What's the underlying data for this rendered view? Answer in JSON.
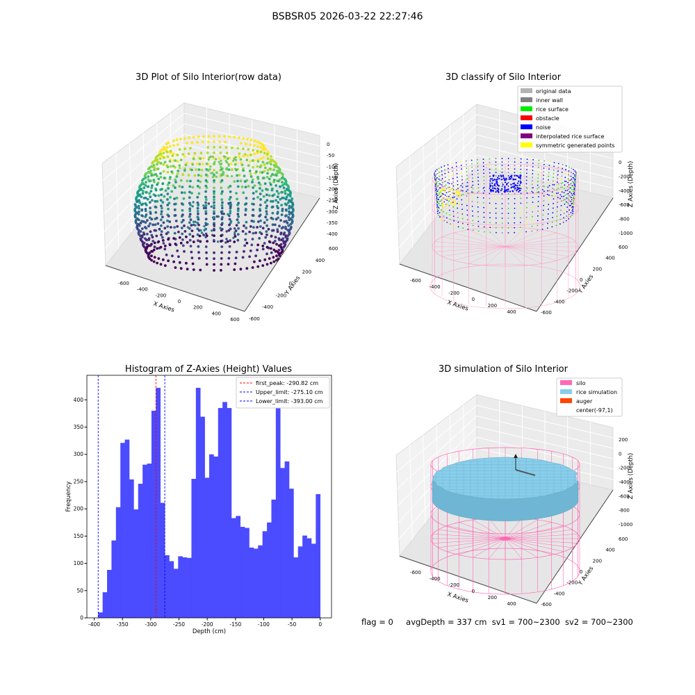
{
  "figure": {
    "suptitle": "BSBSR05 2026-03-22 22:27:46",
    "footer": {
      "flag": "flag = 0",
      "avg_depth": "avgDepth = 337 cm",
      "sv1": "sv1 = 700~2300",
      "sv2": "sv2 = 700~2300"
    }
  },
  "chart_data": [
    {
      "type": "scatter",
      "panel": "top-left",
      "title": "3D Plot of Silo Interior(row data)",
      "xlabel": "X Axies",
      "ylabel": "Y Axies",
      "zlabel": "Z Axies (Depth)",
      "x_ticks": [
        "-600",
        "-400",
        "-200",
        "0",
        "200",
        "400",
        "600"
      ],
      "y_ticks": [
        "-600",
        "-400",
        "-200",
        "0",
        "200",
        "400",
        "600"
      ],
      "z_ticks": [
        "0",
        "-50",
        "-100",
        "-150",
        "-200",
        "-250",
        "-300",
        "-350",
        "-400"
      ],
      "zlim": [
        -420,
        10
      ],
      "colormap": "viridis"
    },
    {
      "type": "scatter",
      "panel": "top-right",
      "title": "3D classify of Silo Interior",
      "xlabel": "X Axies",
      "ylabel": "Y Axies",
      "zlabel": "Z Axies (Depth)",
      "x_ticks": [
        "-600",
        "-400",
        "-200",
        "0",
        "200",
        "400"
      ],
      "y_ticks": [
        "-600",
        "-400",
        "-200",
        "0",
        "200",
        "400",
        "600"
      ],
      "z_ticks": [
        "0",
        "-200",
        "-400",
        "-600",
        "-800",
        "-1000"
      ],
      "legend_position": "top-right",
      "legend": [
        {
          "label": "original data",
          "color": "#b3b3b3"
        },
        {
          "label": "inner wall",
          "color": "#808080"
        },
        {
          "label": "rice surface",
          "color": "#00ee00"
        },
        {
          "label": "obstacle",
          "color": "#ff0000"
        },
        {
          "label": "noise",
          "color": "#0000ff"
        },
        {
          "label": "interpolated rice surface",
          "color": "#800080"
        },
        {
          "label": "symmetric generated points",
          "color": "#ffff00"
        }
      ]
    },
    {
      "type": "bar",
      "panel": "bottom-left",
      "title": "Histogram of Z-Axies (Height) Values",
      "xlabel": "Depth (cm)",
      "ylabel": "Frequency",
      "xlim": [
        -413,
        20
      ],
      "ylim": [
        0,
        445
      ],
      "x_ticks": [
        -400,
        -350,
        -300,
        -250,
        -200,
        -150,
        -100,
        -50,
        0
      ],
      "y_ticks": [
        0,
        50,
        100,
        150,
        200,
        250,
        300,
        350,
        400
      ],
      "bar_color": "#4b4bff",
      "bin_start": -393,
      "bin_width": 7.86,
      "values": [
        10,
        47,
        88,
        142,
        203,
        321,
        327,
        254,
        199,
        246,
        281,
        283,
        380,
        422,
        211,
        115,
        104,
        90,
        113,
        111,
        110,
        255,
        422,
        369,
        257,
        300,
        296,
        385,
        396,
        385,
        183,
        187,
        167,
        165,
        129,
        127,
        133,
        159,
        175,
        217,
        385,
        275,
        287,
        237,
        111,
        131,
        151,
        146,
        136,
        227
      ],
      "reference_lines": [
        {
          "name": "first_peak",
          "value": -290.82,
          "color": "#ff0000",
          "label": "first_peak: -290.82 cm"
        },
        {
          "name": "Upper_limit",
          "value": -275.1,
          "color": "#0000ff",
          "label": "Upper_limit: -275.10 cm"
        },
        {
          "name": "Lower_limit",
          "value": -393.0,
          "color": "#0000ff",
          "label": "Lower_limit: -393.00 cm"
        }
      ],
      "legend_position": "top-right"
    },
    {
      "type": "scatter",
      "panel": "bottom-right",
      "title": "3D simulation of Silo Interior",
      "xlabel": "X Axies",
      "ylabel": "Y Axies",
      "zlabel": "Z Axies (Depth)",
      "x_ticks": [
        "-600",
        "-400",
        "-200",
        "0",
        "200",
        "400"
      ],
      "y_ticks": [
        "-600",
        "-400",
        "-200",
        "0",
        "200",
        "400",
        "600"
      ],
      "z_ticks": [
        "200",
        "0",
        "-200",
        "-400",
        "-600",
        "-800",
        "-1000"
      ],
      "legend_position": "top-right",
      "legend": [
        {
          "label": "silo",
          "color": "#ff69b4"
        },
        {
          "label": "rice simulation",
          "color": "#87ceeb"
        },
        {
          "label": "auger",
          "color": "#ff4500"
        },
        {
          "label": "center(-97,1)",
          "color": "none"
        }
      ]
    }
  ]
}
